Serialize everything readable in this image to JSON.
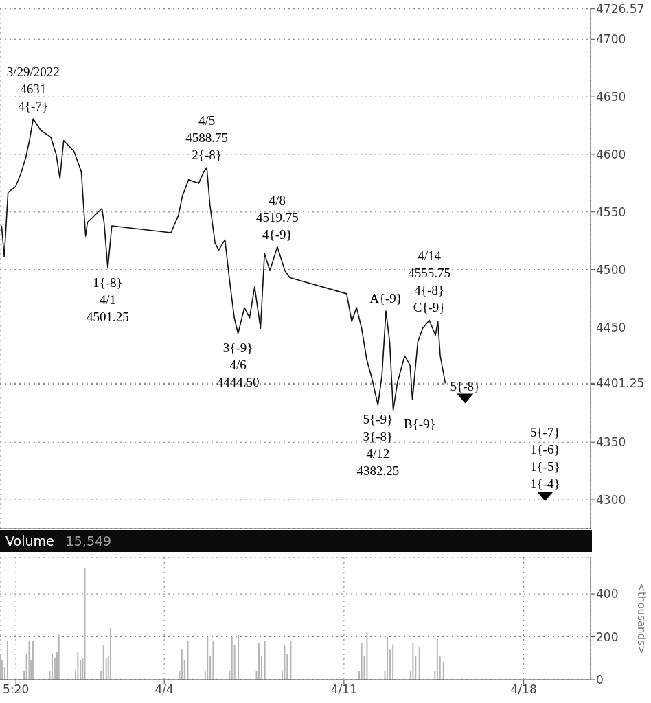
{
  "chart_data": [
    {
      "type": "line",
      "xlim": [
        "2022-03-28T14:30",
        "2022-04-20T14:30"
      ],
      "xticks": [
        {
          "value": "2022-04-04",
          "label": null
        },
        {
          "value": "2022-04-11",
          "label": null
        },
        {
          "value": "2022-04-18",
          "label": null
        }
      ],
      "ylim": [
        4275,
        4727
      ],
      "yticks": [
        4300,
        4350,
        {
          "value": 4400,
          "label": null
        },
        4401.25,
        4450,
        4500,
        4550,
        4600,
        4650,
        4700,
        4726.57
      ],
      "grid": true,
      "tick_labels": "y",
      "series": [
        {
          "color": "#111111",
          "x": [
            "2022-03-28T16:00",
            "2022-03-28T18:30",
            "2022-03-28T22:00",
            "2022-03-29T05:00",
            "2022-03-29T09:30",
            "2022-03-29T14:30",
            "2022-03-29T18:00",
            "2022-03-29T21:30",
            "2022-03-30T04:30",
            "2022-03-30T14:00",
            "2022-03-30T19:00",
            "2022-03-30T22:30",
            "2022-03-31T02:00",
            "2022-03-31T11:30",
            "2022-03-31T18:30",
            "2022-03-31T22:30",
            "2022-04-01T00:15",
            "2022-04-01T13:45",
            "2022-04-01T15:45",
            "2022-04-01T19:15",
            "2022-04-01T23:00",
            "2022-04-04T06:15",
            "2022-04-04T13:15",
            "2022-04-04T17:00",
            "2022-04-04T22:45",
            "2022-04-05T08:15",
            "2022-04-05T13:00",
            "2022-04-05T15:45",
            "2022-04-05T18:45",
            "2022-04-05T23:30",
            "2022-04-06T03:00",
            "2022-04-06T08:45",
            "2022-04-06T12:45",
            "2022-04-06T17:30",
            "2022-04-06T21:00",
            "2022-04-07T03:00",
            "2022-04-07T07:45",
            "2022-04-07T12:30",
            "2022-04-07T18:00",
            "2022-04-07T21:45",
            "2022-04-08T02:45",
            "2022-04-08T09:45",
            "2022-04-08T16:45",
            "2022-04-08T21:30",
            "2022-04-11T02:30",
            "2022-04-11T07:15",
            "2022-04-11T11:45",
            "2022-04-11T16:30",
            "2022-04-11T21:15",
            "2022-04-12T02:15",
            "2022-04-12T07:45",
            "2022-04-12T11:30",
            "2022-04-12T15:15",
            "2022-04-12T18:45",
            "2022-04-12T22:00",
            "2022-04-13T02:00",
            "2022-04-13T08:45",
            "2022-04-13T13:45",
            "2022-04-13T16:00",
            "2022-04-13T21:00",
            "2022-04-14T01:30",
            "2022-04-14T07:45",
            "2022-04-14T13:30",
            "2022-04-14T15:45",
            "2022-04-14T18:00",
            "2022-04-14T22:45"
          ],
          "values": [
            4538,
            4511,
            4567,
            4572,
            4582,
            4597,
            4612,
            4631,
            4621,
            4615,
            4600,
            4579,
            4612,
            4603,
            4585,
            4529,
            4541,
            4553,
            4541,
            4501.25,
            4538,
            4532,
            4547,
            4564,
            4578,
            4575,
            4585,
            4588.75,
            4556,
            4523,
            4517,
            4526,
            4493,
            4458,
            4444.5,
            4467,
            4458,
            4485,
            4449,
            4514,
            4499,
            4519.75,
            4499,
            4493,
            4479,
            4455,
            4467,
            4449,
            4422,
            4405,
            4382.25,
            4408,
            4464,
            4437,
            4378,
            4402,
            4425,
            4417,
            4387,
            4437,
            4449,
            4456,
            4443,
            4455,
            4425,
            4401.25
          ]
        },
        {
          "type": "scatter",
          "color": "#000000",
          "marker": "triangle",
          "x": [
            "2022-04-15T17:15",
            "2022-04-18T20:00"
          ],
          "values": [
            4388,
            4303
          ]
        }
      ],
      "annotations": [
        {
          "text": "3/29/2022\n4631\n4{-7}",
          "x": "2022-03-29T21:30",
          "y": 4631
        },
        {
          "text": "4/5\n4588.75\n2{-8}",
          "x": "2022-04-05T15:45",
          "y": 4588.75
        },
        {
          "text": "1{-8}\n4/1\n4501.25",
          "x": "2022-04-01T19:15",
          "y": 4501.25
        },
        {
          "text": "3{-9}\n4/6\n4444.50",
          "x": "2022-04-06T21:00",
          "y": 4444.5
        },
        {
          "text": "4/8\n4519.75\n4{-9}",
          "x": "2022-04-08T09:45",
          "y": 4519.75
        },
        {
          "text": "5{-9}\n3{-8}\n4/12\n4382.25",
          "x": "2022-04-12T07:45",
          "y": 4382.25
        },
        {
          "text": "A{-9}",
          "x": "2022-04-12T15:15",
          "y": 4464
        },
        {
          "text": "B{-9}",
          "x": "2022-04-12T22:00",
          "y": 4378
        },
        {
          "text": "4/14\n4555.75\n4{-8}\nC{-9}",
          "x": "2022-04-14T07:45",
          "y": 4456
        },
        {
          "text": "5{-8}",
          "x": "2022-04-15T17:15",
          "y": 4388
        },
        {
          "text": "5{-7}\n1{-6}\n1{-5}\n1{-4}",
          "x": "2022-04-18T20:00",
          "y": 4303
        }
      ]
    },
    {
      "type": "bar",
      "title": "Volume",
      "subtitle": "15,549",
      "ylabel": "<thousands>",
      "xlim": [
        "2022-03-28T14:30",
        "2022-04-20T14:30"
      ],
      "xticks": [
        {
          "value": "2022-03-29T05:20",
          "label": "5:20"
        },
        {
          "value": "2022-04-04",
          "label": "4/4"
        },
        {
          "value": "2022-04-11",
          "label": "4/11"
        },
        {
          "value": "2022-04-18",
          "label": "4/18"
        }
      ],
      "ylim": [
        0,
        570
      ],
      "yticks": [
        0,
        200,
        400
      ],
      "grid": true,
      "series": [
        {
          "color": "#b4b4b4",
          "x": [
            "2022-03-28T15:00",
            "2022-03-28T16:45",
            "2022-03-28T19:15",
            "2022-03-28T21:45",
            "2022-03-29T13:15",
            "2022-03-29T15:30",
            "2022-03-29T18:00",
            "2022-03-29T19:45",
            "2022-03-29T21:30",
            "2022-03-30T13:15",
            "2022-03-30T15:30",
            "2022-03-30T18:00",
            "2022-03-30T20:00",
            "2022-03-30T21:45",
            "2022-03-31T13:15",
            "2022-03-31T15:30",
            "2022-03-31T18:00",
            "2022-03-31T20:00",
            "2022-03-31T22:00",
            "2022-04-01T13:15",
            "2022-04-01T15:30",
            "2022-04-01T18:00",
            "2022-04-01T20:00",
            "2022-04-01T22:00",
            "2022-04-04T14:30",
            "2022-04-04T16:45",
            "2022-04-04T19:15",
            "2022-04-04T22:15",
            "2022-04-05T14:30",
            "2022-04-05T16:45",
            "2022-04-05T19:15",
            "2022-04-05T22:00",
            "2022-04-06T13:15",
            "2022-04-06T15:30",
            "2022-04-06T18:00",
            "2022-04-06T21:30",
            "2022-04-07T14:30",
            "2022-04-07T16:45",
            "2022-04-07T19:15",
            "2022-04-07T22:15",
            "2022-04-08T14:30",
            "2022-04-08T16:45",
            "2022-04-08T19:15",
            "2022-04-08T22:30",
            "2022-04-11T14:30",
            "2022-04-11T16:45",
            "2022-04-11T19:15",
            "2022-04-11T21:45",
            "2022-04-12T14:30",
            "2022-04-12T16:45",
            "2022-04-12T19:15",
            "2022-04-12T22:00",
            "2022-04-13T14:30",
            "2022-04-13T16:45",
            "2022-04-13T19:15",
            "2022-04-13T22:45",
            "2022-04-14T13:15",
            "2022-04-14T15:30",
            "2022-04-14T18:00",
            "2022-04-14T21:15"
          ],
          "values": [
            120,
            90,
            60,
            180,
            40,
            120,
            180,
            90,
            180,
            40,
            120,
            100,
            130,
            210,
            40,
            130,
            90,
            100,
            520,
            40,
            160,
            100,
            110,
            240,
            40,
            140,
            90,
            180,
            40,
            200,
            110,
            180,
            40,
            200,
            160,
            210,
            40,
            170,
            110,
            180,
            40,
            160,
            120,
            180,
            40,
            170,
            110,
            220,
            40,
            200,
            140,
            165,
            40,
            170,
            110,
            150,
            40,
            190,
            110,
            80
          ]
        }
      ]
    }
  ]
}
